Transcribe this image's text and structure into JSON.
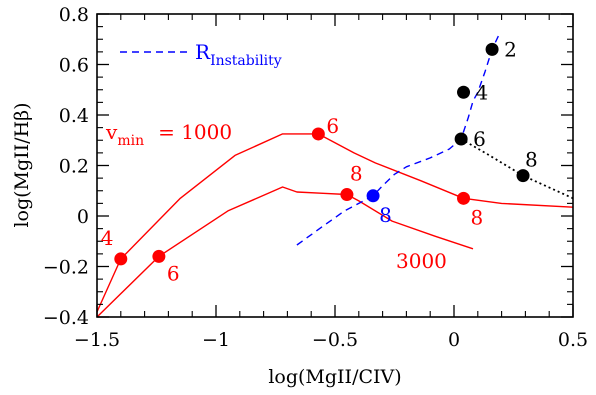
{
  "chart_data": {
    "type": "line",
    "xlabel": "log(MgII/CIV)",
    "ylabel": "log(MgII/Hβ)",
    "xlim": [
      -1.5,
      0.5
    ],
    "ylim": [
      -0.4,
      0.8
    ],
    "x_ticks": [
      "−1.5",
      "−1",
      "−0.5",
      "0",
      "0.5"
    ],
    "y_ticks": [
      "−0.4",
      "−0.2",
      "0",
      "0.2",
      "0.4",
      "0.6",
      "0.8"
    ],
    "grid": false,
    "colors": {
      "red": "#ff0000",
      "blue": "#0000ff",
      "black": "#000000"
    },
    "series": [
      {
        "style": "solid",
        "color": "red",
        "x": [
          -1.5,
          -1.4,
          -1.15,
          -0.92,
          -0.72,
          -0.57,
          -0.42,
          -0.33,
          -0.14,
          0.04,
          0.2,
          0.5
        ],
        "y": [
          -0.38,
          -0.17,
          0.07,
          0.24,
          0.325,
          0.325,
          0.25,
          0.21,
          0.14,
          0.07,
          0.05,
          0.035
        ],
        "markers": [
          {
            "x": -1.4,
            "y": -0.17,
            "label": "4"
          },
          {
            "x": -0.57,
            "y": 0.325,
            "label": "6"
          },
          {
            "x": 0.04,
            "y": 0.07,
            "label": "8"
          }
        ]
      },
      {
        "style": "solid",
        "color": "red",
        "x": [
          -1.5,
          -1.24,
          -0.95,
          -0.72,
          -0.66,
          -0.55,
          -0.45,
          -0.4,
          -0.26,
          -0.08,
          0.08
        ],
        "y": [
          -0.4,
          -0.16,
          0.02,
          0.115,
          0.095,
          0.09,
          0.085,
          0.06,
          -0.02,
          -0.08,
          -0.13
        ],
        "markers": [
          {
            "x": -1.24,
            "y": -0.16,
            "label": "6"
          },
          {
            "x": -0.45,
            "y": 0.085,
            "label": "8"
          }
        ]
      },
      {
        "style": "dashed",
        "color": "blue",
        "x": [
          -0.66,
          -0.55,
          -0.46,
          -0.4,
          -0.34,
          -0.3,
          -0.25,
          -0.2,
          -0.1,
          -0.02,
          0.03,
          0.06,
          0.08,
          0.1,
          0.13,
          0.16,
          0.19
        ],
        "y": [
          -0.115,
          -0.04,
          0.02,
          0.05,
          0.08,
          0.12,
          0.165,
          0.195,
          0.23,
          0.265,
          0.305,
          0.39,
          0.455,
          0.49,
          0.57,
          0.66,
          0.72
        ],
        "markers": [
          {
            "x": -0.34,
            "y": 0.08,
            "label": "8"
          }
        ]
      },
      {
        "style": "dotted",
        "color": "black",
        "x": [
          0.03,
          0.14,
          0.29,
          0.5
        ],
        "y": [
          0.305,
          0.245,
          0.16,
          0.07
        ],
        "markers": []
      }
    ],
    "black_markers": [
      {
        "x": 0.16,
        "y": 0.66,
        "label": "2"
      },
      {
        "x": 0.04,
        "y": 0.49,
        "label": "4"
      },
      {
        "x": 0.03,
        "y": 0.305,
        "label": "6"
      },
      {
        "x": 0.29,
        "y": 0.16,
        "label": "8"
      }
    ],
    "annotations": {
      "legend_prefix": "R",
      "legend_sub": "Instability",
      "vmin_prefix": "v",
      "vmin_sub": "min",
      "vmin_value": "=  1000",
      "label_3000": "3000"
    }
  }
}
